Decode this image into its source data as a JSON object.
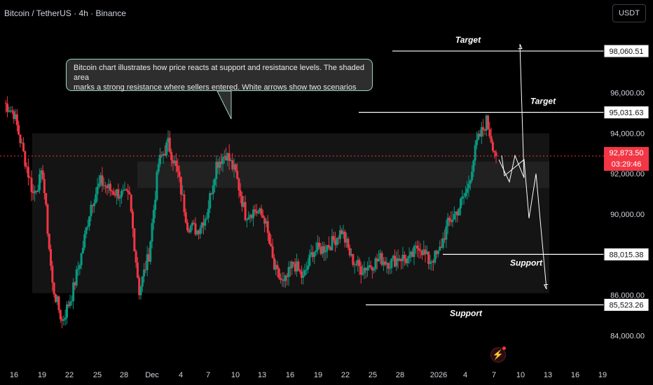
{
  "symbol_title": "Bitcoin / TetherUS · 4h · Binance",
  "currency_button": "USDT",
  "annotation_note": {
    "line1": "Bitcoin chart illustrates how price reacts at support and resistance levels. The shaded area",
    "line2": "marks a strong resistance where sellers entered. White arrows show two scenarios"
  },
  "colors": {
    "background": "#000000",
    "up_candle": "#089981",
    "down_candle": "#f23645",
    "zone_fill": "#ffffff",
    "level_line": "#ffffff",
    "price_flag": "#f23645"
  },
  "current_price": {
    "value": "92,873.50",
    "countdown": "03:29:46"
  },
  "icons": {
    "alert": "lightning-bolt-icon"
  },
  "chart_data": {
    "type": "candlestick",
    "title": "Bitcoin / TetherUS · 4h · Binance",
    "y_axis_ticks": [
      "96,000.00",
      "94,000.00",
      "92,000.00",
      "90,000.00",
      "86,000.00",
      "84,000.00"
    ],
    "x_axis_ticks": [
      "16",
      "19",
      "22",
      "25",
      "28",
      "Dec",
      "4",
      "7",
      "10",
      "13",
      "16",
      "19",
      "22",
      "25",
      "28",
      "2026",
      "4",
      "7",
      "10",
      "13",
      "16",
      "19"
    ],
    "ylim": [
      82600,
      99200
    ],
    "grid": false,
    "levels": [
      {
        "label": "Target",
        "value": 98060.51,
        "display": "98,060.51"
      },
      {
        "label": "Target",
        "value": 95031.63,
        "display": "95,031.63"
      },
      {
        "label": "Support",
        "value": 88015.38,
        "display": "88,015.38"
      },
      {
        "label": "Support",
        "value": 85523.26,
        "display": "85,523.26"
      }
    ],
    "zones": [
      {
        "kind": "range",
        "from": 86100,
        "to": 94000
      },
      {
        "kind": "resistance",
        "from": 91300,
        "to": 92600
      }
    ],
    "scenarios": [
      {
        "direction": "up",
        "path": [
          92700,
          91600,
          92900,
          91800,
          98400
        ]
      },
      {
        "direction": "down",
        "path": [
          92900,
          91900,
          92700,
          89800,
          92000,
          86300
        ]
      }
    ],
    "anchor_points": [
      {
        "label": "16",
        "close": 95500
      },
      {
        "label": "17",
        "close": 95000
      },
      {
        "label": "18",
        "close": 93000
      },
      {
        "label": "19",
        "close": 91000
      },
      {
        "label": "20",
        "close": 92000
      },
      {
        "label": "21",
        "close": 86500
      },
      {
        "label": "22",
        "close": 84700
      },
      {
        "label": "23",
        "close": 86000
      },
      {
        "label": "24",
        "close": 88000
      },
      {
        "label": "26",
        "close": 90500
      },
      {
        "label": "27",
        "close": 91600
      },
      {
        "label": "28",
        "close": 91200
      },
      {
        "label": "29",
        "close": 91000
      },
      {
        "label": "30",
        "close": 90800
      },
      {
        "label": "Dec",
        "close": 86200
      },
      {
        "label": "2",
        "close": 88000
      },
      {
        "label": "3",
        "close": 92500
      },
      {
        "label": "4",
        "close": 93500
      },
      {
        "label": "5",
        "close": 92000
      },
      {
        "label": "6",
        "close": 89500
      },
      {
        "label": "7",
        "close": 89200
      },
      {
        "label": "8",
        "close": 90000
      },
      {
        "label": "9",
        "close": 92500
      },
      {
        "label": "10",
        "close": 93000
      },
      {
        "label": "11",
        "close": 92000
      },
      {
        "label": "12",
        "close": 90000
      },
      {
        "label": "13",
        "close": 90200
      },
      {
        "label": "14",
        "close": 89800
      },
      {
        "label": "15",
        "close": 87300
      },
      {
        "label": "16",
        "close": 86500
      },
      {
        "label": "17",
        "close": 87600
      },
      {
        "label": "18",
        "close": 86800
      },
      {
        "label": "19",
        "close": 88200
      },
      {
        "label": "20",
        "close": 88300
      },
      {
        "label": "21",
        "close": 88600
      },
      {
        "label": "22",
        "close": 89200
      },
      {
        "label": "23",
        "close": 87800
      },
      {
        "label": "24",
        "close": 87300
      },
      {
        "label": "25",
        "close": 87500
      },
      {
        "label": "26",
        "close": 87800
      },
      {
        "label": "27",
        "close": 87600
      },
      {
        "label": "28",
        "close": 87900
      },
      {
        "label": "29",
        "close": 87700
      },
      {
        "label": "30",
        "close": 88500
      },
      {
        "label": "31",
        "close": 87700
      },
      {
        "label": "2026",
        "close": 88000
      },
      {
        "label": "2",
        "close": 89500
      },
      {
        "label": "3",
        "close": 90200
      },
      {
        "label": "4",
        "close": 91200
      },
      {
        "label": "5",
        "close": 93500
      },
      {
        "label": "6",
        "close": 94600
      },
      {
        "label": "7",
        "close": 92873.5
      }
    ]
  }
}
